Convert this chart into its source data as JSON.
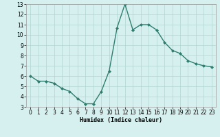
{
  "x": [
    0,
    1,
    2,
    3,
    4,
    5,
    6,
    7,
    8,
    9,
    10,
    11,
    12,
    13,
    14,
    15,
    16,
    17,
    18,
    19,
    20,
    21,
    22,
    23
  ],
  "y": [
    6.0,
    5.5,
    5.5,
    5.3,
    4.8,
    4.5,
    3.8,
    3.3,
    3.3,
    4.5,
    6.5,
    10.7,
    13.0,
    10.5,
    11.0,
    11.0,
    10.5,
    9.3,
    8.5,
    8.2,
    7.5,
    7.2,
    7.0,
    6.9
  ],
  "line_color": "#2e7d6e",
  "marker": "D",
  "marker_size": 2.0,
  "line_width": 1.0,
  "bg_color": "#d6f0ef",
  "grid_color": "#b0d4d0",
  "xlabel": "Humidex (Indice chaleur)",
  "xlabel_fontsize": 6,
  "tick_fontsize": 5.5,
  "ylim": [
    3,
    13
  ],
  "yticks": [
    3,
    4,
    5,
    6,
    7,
    8,
    9,
    10,
    11,
    12,
    13
  ],
  "xticks": [
    0,
    1,
    2,
    3,
    4,
    5,
    6,
    7,
    8,
    9,
    10,
    11,
    12,
    13,
    14,
    15,
    16,
    17,
    18,
    19,
    20,
    21,
    22,
    23
  ]
}
